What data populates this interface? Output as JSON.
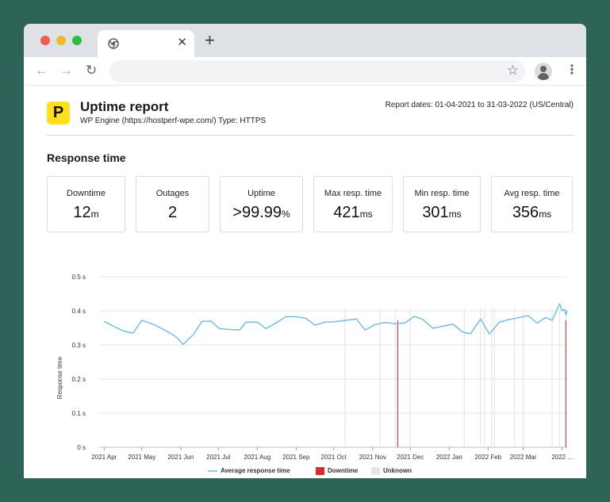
{
  "report": {
    "logo_letter": "P",
    "title": "Uptime report",
    "subtitle": "WP Engine (https://hostperf-wpe.com/) Type: HTTPS",
    "dates": "Report dates: 01-04-2021 to 31-03-2022 (US/Central)",
    "section_title": "Response time"
  },
  "stats": [
    {
      "label": "Downtime",
      "value": "12",
      "unit": "m"
    },
    {
      "label": "Outages",
      "value": "2",
      "unit": ""
    },
    {
      "label": "Uptime",
      "value": ">99.99",
      "unit": "%"
    },
    {
      "label": "Max resp. time",
      "value": "421",
      "unit": "ms"
    },
    {
      "label": "Min resp. time",
      "value": "301",
      "unit": "ms"
    },
    {
      "label": "Avg resp. time",
      "value": "356",
      "unit": "ms"
    }
  ],
  "legend": {
    "avg": "Average response time",
    "downtime": "Downtime",
    "unknown": "Unknown"
  },
  "colors": {
    "line": "#6cb9e8",
    "downtime": "#d92c2c",
    "unknown": "#e6e6e6",
    "logo": "#ffe01b"
  },
  "chart_data": {
    "type": "line",
    "ylabel": "Response time",
    "ylim": [
      0,
      0.5
    ],
    "y_ticks": [
      {
        "value": 0,
        "label": "0 s"
      },
      {
        "value": 0.1,
        "label": "0.1 s"
      },
      {
        "value": 0.2,
        "label": "0.2 s"
      },
      {
        "value": 0.3,
        "label": "0.3 s"
      },
      {
        "value": 0.4,
        "label": "0.4 s"
      },
      {
        "value": 0.5,
        "label": "0.5 s"
      }
    ],
    "xlim": [
      "2021-03-28",
      "2022-04-05"
    ],
    "x_ticks": [
      {
        "date": "2021-04-01",
        "label": "2021 Apr"
      },
      {
        "date": "2021-05-01",
        "label": "2021 May"
      },
      {
        "date": "2021-06-01",
        "label": "2021 Jun"
      },
      {
        "date": "2021-07-01",
        "label": "2021 Jul"
      },
      {
        "date": "2021-08-01",
        "label": "2021 Aug"
      },
      {
        "date": "2021-09-01",
        "label": "2021 Sep"
      },
      {
        "date": "2021-10-01",
        "label": "2021 Oct"
      },
      {
        "date": "2021-11-01",
        "label": "2021 Nov"
      },
      {
        "date": "2021-12-01",
        "label": "2021 Dec"
      },
      {
        "date": "2022-01-01",
        "label": "2022 Jan"
      },
      {
        "date": "2022-02-01",
        "label": "2022 Feb"
      },
      {
        "date": "2022-03-01",
        "label": "2022 Mar"
      },
      {
        "date": "2022-04-01",
        "label": "2022 ..."
      }
    ],
    "grid": true,
    "legend_position": "bottom",
    "series": [
      {
        "name": "Average response time",
        "points": [
          [
            "2021-04-01",
            0.369
          ],
          [
            "2021-04-10",
            0.352
          ],
          [
            "2021-04-17",
            0.34
          ],
          [
            "2021-04-24",
            0.335
          ],
          [
            "2021-05-01",
            0.372
          ],
          [
            "2021-05-10",
            0.361
          ],
          [
            "2021-05-20",
            0.342
          ],
          [
            "2021-05-28",
            0.325
          ],
          [
            "2021-06-03",
            0.302
          ],
          [
            "2021-06-11",
            0.33
          ],
          [
            "2021-06-18",
            0.369
          ],
          [
            "2021-06-25",
            0.37
          ],
          [
            "2021-07-02",
            0.348
          ],
          [
            "2021-07-12",
            0.345
          ],
          [
            "2021-07-18",
            0.344
          ],
          [
            "2021-07-23",
            0.367
          ],
          [
            "2021-08-01",
            0.367
          ],
          [
            "2021-08-08",
            0.348
          ],
          [
            "2021-08-16",
            0.365
          ],
          [
            "2021-08-24",
            0.383
          ],
          [
            "2021-09-01",
            0.383
          ],
          [
            "2021-09-09",
            0.378
          ],
          [
            "2021-09-16",
            0.358
          ],
          [
            "2021-09-24",
            0.367
          ],
          [
            "2021-10-01",
            0.368
          ],
          [
            "2021-10-10",
            0.372
          ],
          [
            "2021-10-19",
            0.376
          ],
          [
            "2021-10-26",
            0.344
          ],
          [
            "2021-11-03",
            0.36
          ],
          [
            "2021-11-11",
            0.366
          ],
          [
            "2021-11-19",
            0.362
          ],
          [
            "2021-11-27",
            0.365
          ],
          [
            "2021-12-04",
            0.384
          ],
          [
            "2021-12-11",
            0.375
          ],
          [
            "2021-12-19",
            0.349
          ],
          [
            "2021-12-28",
            0.356
          ],
          [
            "2022-01-04",
            0.361
          ],
          [
            "2022-01-12",
            0.337
          ],
          [
            "2022-01-18",
            0.333
          ],
          [
            "2022-01-26",
            0.376
          ],
          [
            "2022-02-02",
            0.332
          ],
          [
            "2022-02-10",
            0.367
          ],
          [
            "2022-02-17",
            0.374
          ],
          [
            "2022-02-24",
            0.379
          ],
          [
            "2022-03-05",
            0.386
          ],
          [
            "2022-03-12",
            0.364
          ],
          [
            "2022-03-19",
            0.381
          ],
          [
            "2022-03-24",
            0.372
          ],
          [
            "2022-03-30",
            0.421
          ],
          [
            "2022-04-01",
            0.4
          ],
          [
            "2022-04-03",
            0.404
          ],
          [
            "2022-04-04",
            0.388
          ],
          [
            "2022-04-05",
            0.401
          ]
        ]
      }
    ],
    "downtime": [
      "2021-11-21",
      "2022-04-04"
    ],
    "unknown": [
      "2021-10-10",
      "2021-11-07",
      "2021-11-19",
      "2021-12-01",
      "2022-01-13",
      "2022-01-26",
      "2022-01-29",
      "2022-02-04",
      "2022-02-06",
      "2022-02-22",
      "2022-03-01",
      "2022-03-24",
      "2022-03-30",
      "2022-04-04"
    ]
  }
}
